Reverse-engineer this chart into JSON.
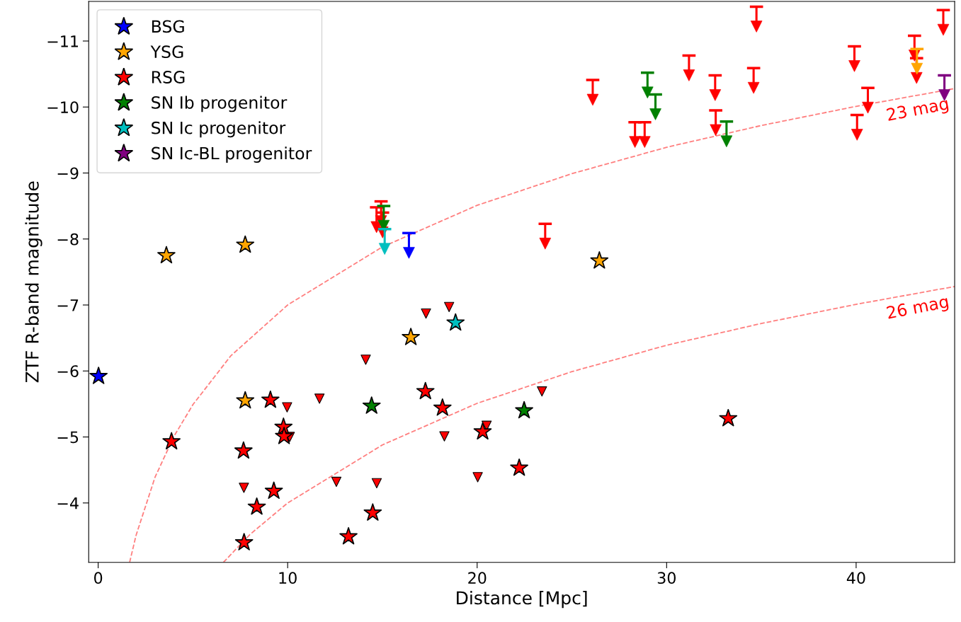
{
  "chart_data": {
    "type": "scatter",
    "xlabel": "Distance [Mpc]",
    "ylabel": "ZTF R-band magnitude",
    "xlim": [
      -0.5,
      45.2
    ],
    "ylim": [
      -3.1,
      -11.6
    ],
    "xticks": [
      0,
      10,
      20,
      30,
      40
    ],
    "yticks": [
      {
        "value": -11,
        "label": "−11"
      },
      {
        "value": -10,
        "label": "−10"
      },
      {
        "value": -9,
        "label": "−9"
      },
      {
        "value": -8,
        "label": "−8"
      },
      {
        "value": -7,
        "label": "−7"
      },
      {
        "value": -6,
        "label": "−6"
      },
      {
        "value": -5,
        "label": "−5"
      },
      {
        "value": -4,
        "label": "−4"
      }
    ],
    "grid": false,
    "legend": "top left",
    "annotations": [
      "23 mag",
      "26 mag"
    ],
    "series": [
      {
        "type": "line",
        "color": "#ff7f7f",
        "line_style": "dashed",
        "x": [
          1.66,
          2,
          3,
          4,
          5,
          7,
          10,
          15,
          20,
          25,
          30,
          35,
          40,
          45.2
        ],
        "values": [
          -3.1,
          -3.51,
          -4.39,
          -5.01,
          -5.49,
          -6.23,
          -7.0,
          -7.88,
          -8.51,
          -8.99,
          -9.39,
          -9.72,
          -10.01,
          -10.28
        ]
      },
      {
        "type": "line",
        "color": "#ff7f7f",
        "line_style": "dashed",
        "x": [
          6.61,
          8,
          10,
          15,
          20,
          25,
          30,
          35,
          40,
          45.2
        ],
        "values": [
          -3.1,
          -3.52,
          -4.0,
          -4.88,
          -5.51,
          -5.99,
          -6.39,
          -6.72,
          -7.01,
          -7.28
        ]
      },
      {
        "marker": "triangle",
        "color": "#ff0000",
        "x": [
          7.69,
          9.97,
          10.11,
          11.68,
          12.57,
          14.7,
          14.12,
          17.3,
          18.52,
          18.27,
          20.03,
          20.5,
          23.42
        ],
        "values": [
          -4.23,
          -5.45,
          -5.0,
          -5.58,
          -4.32,
          -4.3,
          -6.17,
          -6.87,
          -6.97,
          -5.01,
          -4.39,
          -5.17,
          -5.69
        ]
      },
      {
        "marker": "triangle",
        "color": "#ff0000",
        "x": [
          14.69,
          14.93,
          15.01,
          23.59,
          26.1,
          28.33,
          28.84,
          31.18,
          32.56,
          32.59,
          34.59,
          34.74,
          39.91,
          40.05,
          40.62,
          43.08,
          43.19,
          44.6
        ],
        "values": [
          -8.18,
          -8.27,
          -8.1,
          -7.93,
          -10.11,
          -9.47,
          -9.47,
          -10.48,
          -10.18,
          -9.65,
          -10.29,
          -11.22,
          -10.62,
          -9.58,
          -9.99,
          -10.78,
          -10.44,
          -11.17
        ],
        "errors": [
          [
            -8.48,
            -8.18
          ],
          [
            -8.57,
            -8.27
          ],
          [
            -8.4,
            -8.1
          ],
          [
            -8.23,
            -7.93
          ],
          [
            -10.41,
            -10.11
          ],
          [
            -9.77,
            -9.47
          ],
          [
            -9.77,
            -9.47
          ],
          [
            -10.78,
            -10.48
          ],
          [
            -10.48,
            -10.18
          ],
          [
            -9.95,
            -9.65
          ],
          [
            -10.59,
            -10.29
          ],
          [
            -11.52,
            -11.22
          ],
          [
            -10.92,
            -10.62
          ],
          [
            -9.88,
            -9.58
          ],
          [
            -10.29,
            -9.99
          ],
          [
            -11.08,
            -10.78
          ],
          [
            -10.74,
            -10.44
          ],
          [
            -11.47,
            -11.17
          ]
        ]
      },
      {
        "marker": "triangle",
        "color": "#008000",
        "x": [
          15.07,
          28.99,
          29.41,
          33.16
        ],
        "values": [
          -8.2,
          -10.22,
          -9.89,
          -9.48
        ],
        "errors": [
          [
            -8.5,
            -8.2
          ],
          [
            -10.52,
            -10.22
          ],
          [
            -10.19,
            -9.89
          ],
          [
            -9.78,
            -9.48
          ]
        ]
      },
      {
        "marker": "triangle",
        "color": "#00bfbf",
        "x": [
          15.12
        ],
        "values": [
          -7.85
        ],
        "errors": [
          [
            -8.15,
            -7.85
          ]
        ]
      },
      {
        "marker": "triangle",
        "color": "#0000ff",
        "x": [
          16.4
        ],
        "values": [
          -7.79
        ],
        "errors": [
          [
            -8.09,
            -7.79
          ]
        ]
      },
      {
        "marker": "triangle",
        "color": "#ffa500",
        "x": [
          43.21
        ],
        "values": [
          -10.58
        ],
        "errors": [
          [
            -10.88,
            -10.58
          ]
        ]
      },
      {
        "marker": "star",
        "name": "BSG",
        "color": "#0000ff",
        "x": [
          0.02
        ],
        "values": [
          -5.92
        ]
      },
      {
        "marker": "star",
        "name": "YSG",
        "color": "#ffa500",
        "x": [
          3.6,
          7.76,
          16.5,
          26.45,
          7.76
        ],
        "values": [
          -7.75,
          -7.91,
          -6.51,
          -7.67,
          -5.55
        ]
      },
      {
        "marker": "star",
        "name": "RSG",
        "color": "#ff0000",
        "x": [
          3.87,
          7.67,
          9.09,
          9.78,
          9.81,
          9.27,
          8.37,
          7.7,
          13.21,
          14.49,
          17.27,
          18.17,
          20.29,
          22.22,
          33.25
        ],
        "values": [
          -4.93,
          -4.79,
          -5.56,
          -5.15,
          -5.01,
          -4.18,
          -3.94,
          -3.4,
          -3.49,
          -3.85,
          -5.69,
          -5.44,
          -5.08,
          -4.53,
          -5.28
        ]
      },
      {
        "marker": "star",
        "name": "SN Ib progenitor",
        "color": "#008000",
        "x": [
          14.43,
          22.48
        ],
        "values": [
          -5.47,
          -5.4
        ]
      },
      {
        "marker": "star",
        "name": "SN Ic progenitor",
        "color": "#00bfbf",
        "x": [
          18.86
        ],
        "values": [
          -6.73
        ]
      },
      {
        "marker": "triangle",
        "name": "SN Ic-BL progenitor",
        "color": "#800080",
        "x": [
          44.66
        ],
        "values": [
          -10.18
        ],
        "errors": [
          [
            -10.48,
            -10.18
          ]
        ]
      }
    ]
  }
}
